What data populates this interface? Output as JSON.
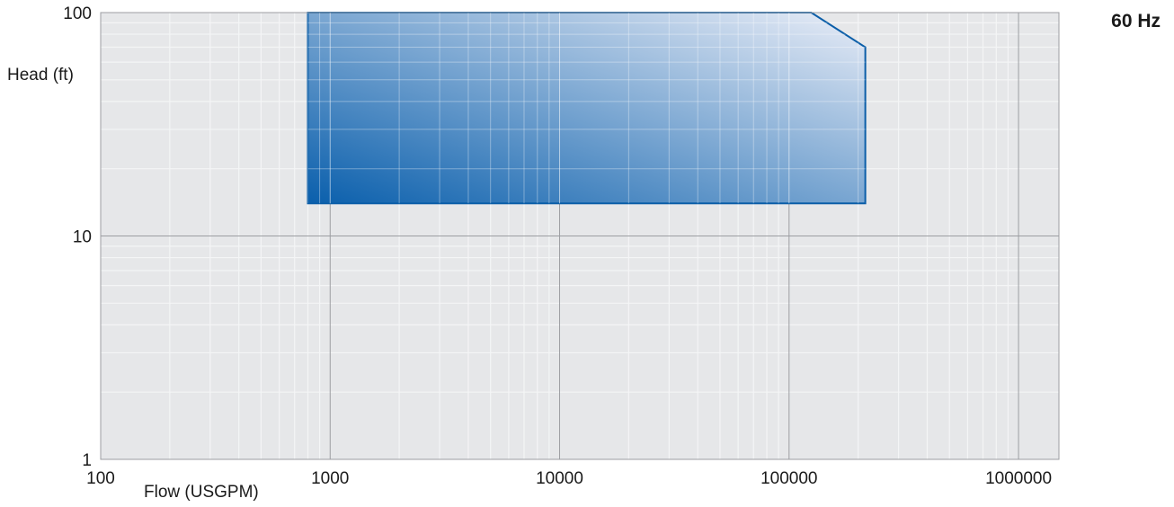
{
  "chart_data": {
    "type": "area",
    "annotation": "60 Hz",
    "xlabel": "Flow (USGPM)",
    "ylabel": "Head (ft)",
    "x_scale": "log",
    "y_scale": "log",
    "xlim": [
      100,
      1500000
    ],
    "ylim": [
      1,
      100
    ],
    "x_ticks": [
      "100",
      "1000",
      "10000",
      "100000",
      "1000000"
    ],
    "y_ticks": [
      "1",
      "10",
      "100"
    ],
    "grid": true,
    "series": [
      {
        "polygon": [
          {
            "x": 800,
            "y": 14
          },
          {
            "x": 800,
            "y": 100
          },
          {
            "x": 125000,
            "y": 100
          },
          {
            "x": 215000,
            "y": 70
          },
          {
            "x": 215000,
            "y": 14
          }
        ]
      }
    ],
    "colors": {
      "plot_background": "#e6e7e9",
      "grid_minor": "#f4f5f6",
      "grid_major": "#9c9ea2",
      "fill_dark": "#0a5fac",
      "fill_light": "#e9edf7",
      "outline": "#0b5ea8"
    }
  }
}
